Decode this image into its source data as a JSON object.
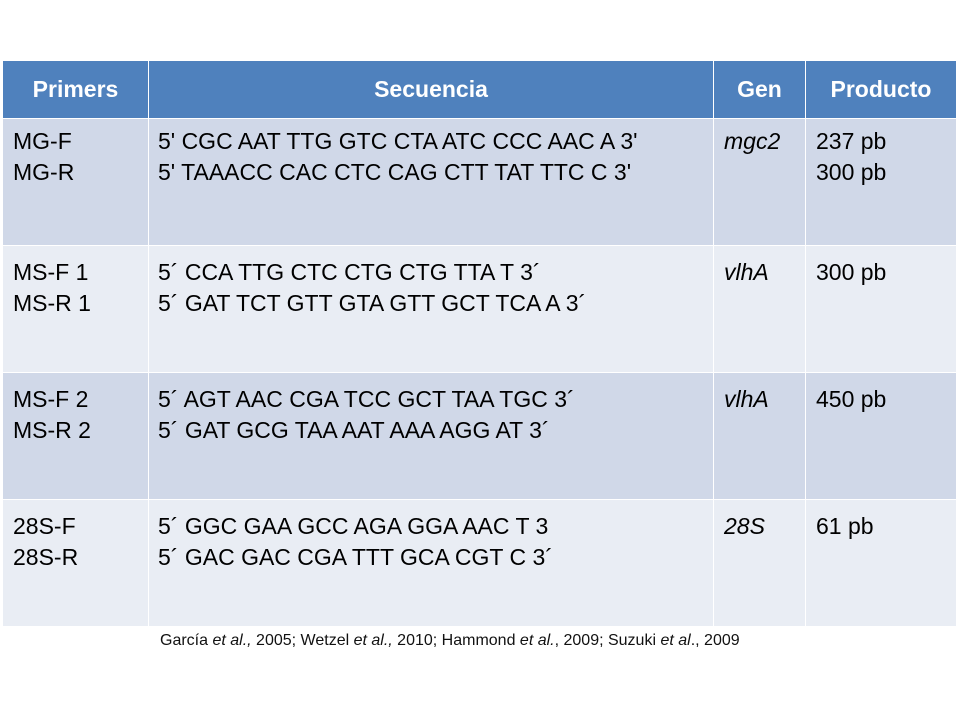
{
  "table": {
    "headers": [
      "Primers",
      "Secuencia",
      "Gen",
      "Producto"
    ],
    "rows": [
      {
        "primers": [
          "MG-F",
          "MG-R"
        ],
        "secuencia": [
          "5' CGC AAT TTG GTC CTA ATC CCC AAC A 3'",
          "5' TAAACC CAC CTC CAG CTT TAT TTC C 3'"
        ],
        "gen": "mgc2",
        "producto": [
          "237 pb",
          "300 pb"
        ]
      },
      {
        "primers": [
          "MS-F 1",
          "MS-R 1"
        ],
        "secuencia": [
          "5´ CCA TTG CTC CTG CTG TTA T 3´",
          "5´ GAT TCT GTT GTA GTT GCT TCA A 3´"
        ],
        "gen": "vlhA",
        "producto": [
          "300 pb"
        ]
      },
      {
        "primers": [
          "MS-F 2",
          "MS-R 2"
        ],
        "secuencia": [
          "5´ AGT AAC CGA TCC GCT TAA TGC 3´",
          "5´ GAT GCG TAA AAT AAA AGG AT 3´"
        ],
        "gen": "vlhA",
        "producto": [
          "450 pb"
        ]
      },
      {
        "primers": [
          "28S-F",
          "28S-R"
        ],
        "secuencia": [
          "5´ GGC GAA GCC AGA GGA AAC T 3",
          "5´ GAC GAC CGA TTT GCA CGT C 3´"
        ],
        "gen": "28S",
        "producto": [
          "61 pb"
        ]
      }
    ]
  },
  "citation": {
    "parts": [
      {
        "text": "García ",
        "italic": false
      },
      {
        "text": "et al.,",
        "italic": true
      },
      {
        "text": " 2005; Wetzel ",
        "italic": false
      },
      {
        "text": "et al.,",
        "italic": true
      },
      {
        "text": " 2010; Hammond ",
        "italic": false
      },
      {
        "text": "et al.",
        "italic": true
      },
      {
        "text": ", 2009; Suzuki ",
        "italic": false
      },
      {
        "text": "et al",
        "italic": true
      },
      {
        "text": "., 2009",
        "italic": false
      }
    ]
  },
  "colors": {
    "header": "#4f81bd",
    "row_odd": "#d0d8e8",
    "row_even": "#e9edf4"
  }
}
